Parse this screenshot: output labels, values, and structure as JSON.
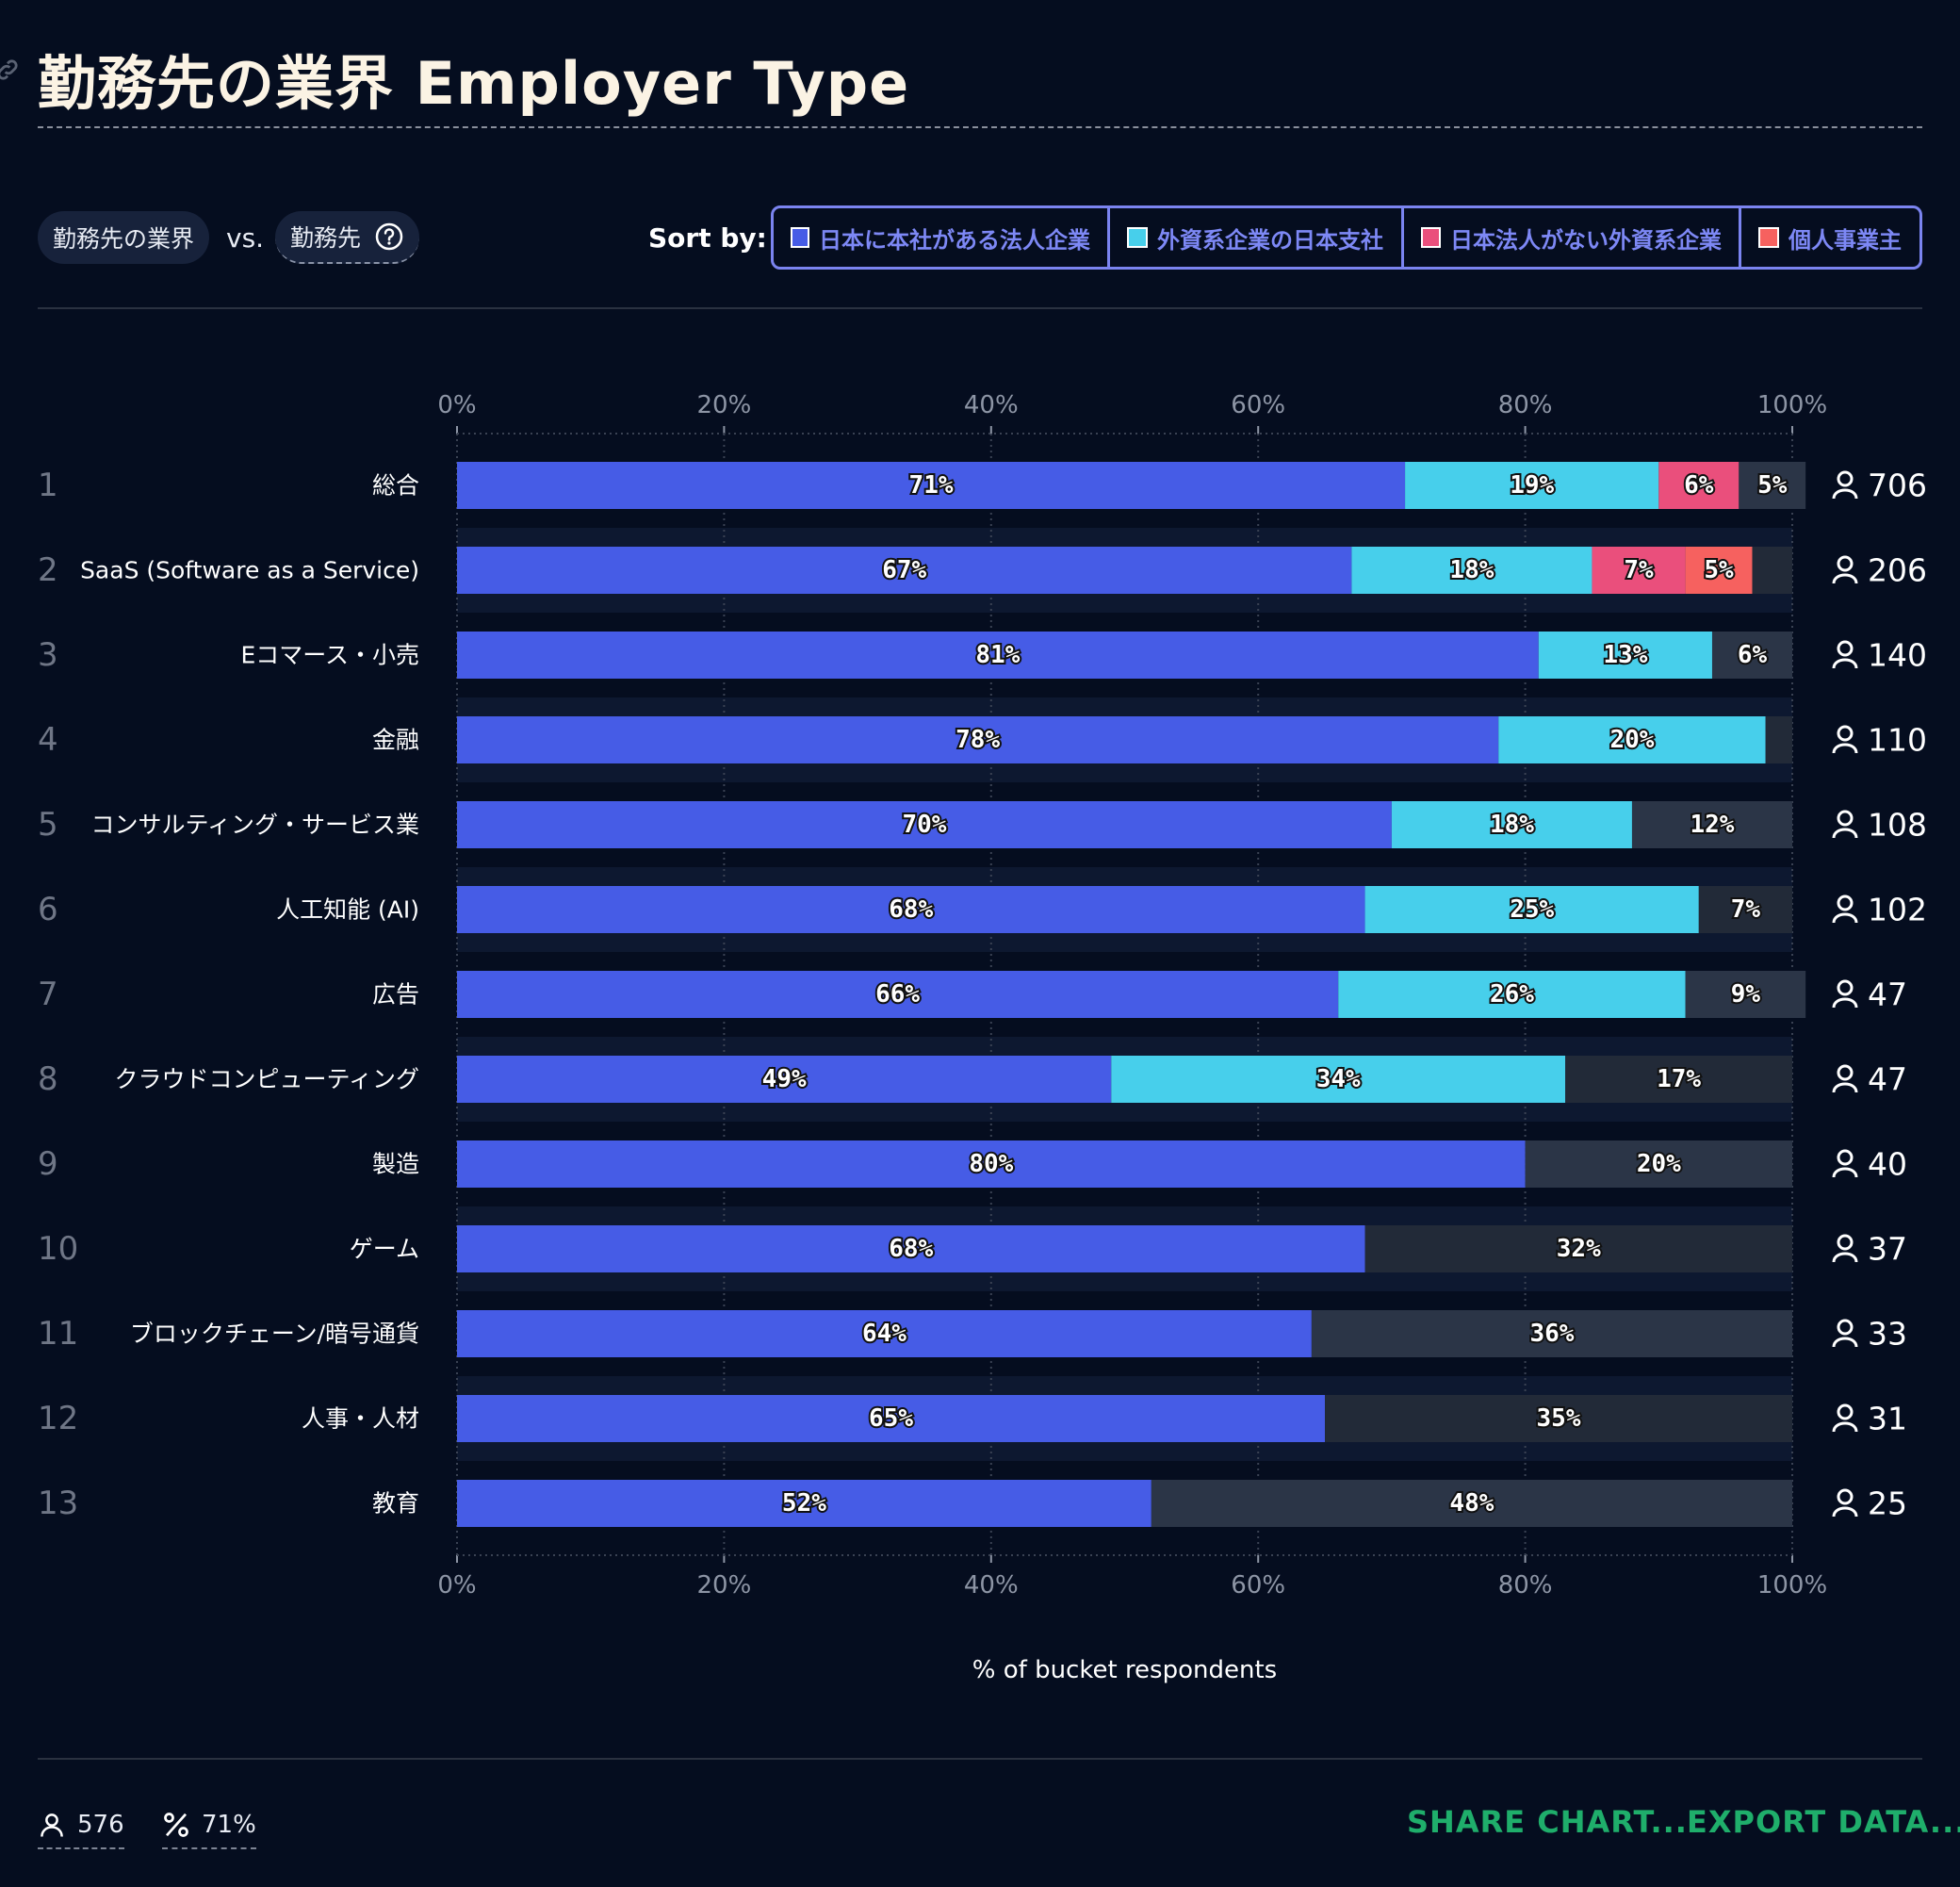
{
  "header": {
    "title": "勤務先の業界 Employer Type"
  },
  "controls": {
    "chip_primary": "勤務先の業界",
    "vs": "vs.",
    "chip_secondary": "勤務先",
    "sort_label": "Sort by:",
    "sort_options": [
      {
        "label": "日本に本社がある法人企業",
        "color": "#465ce6"
      },
      {
        "label": "外資系企業の日本支社",
        "color": "#47cfeb"
      },
      {
        "label": "日本法人がない外資系企業",
        "color": "#ea4f7c"
      },
      {
        "label": "個人事業主",
        "color": "#f6615f"
      }
    ]
  },
  "chart_data": {
    "type": "bar",
    "orientation": "horizontal",
    "stacked": true,
    "xlim": [
      0,
      100
    ],
    "x_ticks": [
      "0%",
      "20%",
      "40%",
      "60%",
      "80%",
      "100%"
    ],
    "xlabel": "% of bucket respondents",
    "series_colors": [
      "#465ce6",
      "#47cfeb",
      "#ea4f7c",
      "#f6615f"
    ],
    "series": [
      {
        "name": "日本に本社がある法人企業"
      },
      {
        "name": "外資系企業の日本支社"
      },
      {
        "name": "日本法人がない外資系企業"
      },
      {
        "name": "個人事業主"
      }
    ],
    "rows": [
      {
        "rank": "1",
        "category": "総合",
        "count": "706",
        "segments": [
          {
            "series": 0,
            "value": 71,
            "label": "71%"
          },
          {
            "series": 1,
            "value": 19,
            "label": "19%"
          },
          {
            "series": 2,
            "value": 6,
            "label": "6%"
          },
          {
            "series": "other",
            "value": 5,
            "label": "5%"
          }
        ]
      },
      {
        "rank": "2",
        "category": "SaaS (Software as a Service)",
        "count": "206",
        "segments": [
          {
            "series": 0,
            "value": 67,
            "label": "67%"
          },
          {
            "series": 1,
            "value": 18,
            "label": "18%"
          },
          {
            "series": 2,
            "value": 7,
            "label": "7%"
          },
          {
            "series": 3,
            "value": 5,
            "label": "5%"
          },
          {
            "series": "other",
            "value": 3,
            "label": ""
          }
        ]
      },
      {
        "rank": "3",
        "category": "Eコマース・小売",
        "count": "140",
        "segments": [
          {
            "series": 0,
            "value": 81,
            "label": "81%"
          },
          {
            "series": 1,
            "value": 13,
            "label": "13%"
          },
          {
            "series": "other",
            "value": 6,
            "label": "6%"
          }
        ]
      },
      {
        "rank": "4",
        "category": "金融",
        "count": "110",
        "segments": [
          {
            "series": 0,
            "value": 78,
            "label": "78%"
          },
          {
            "series": 1,
            "value": 20,
            "label": "20%"
          },
          {
            "series": "other",
            "value": 2,
            "label": ""
          }
        ]
      },
      {
        "rank": "5",
        "category": "コンサルティング・サービス業",
        "count": "108",
        "segments": [
          {
            "series": 0,
            "value": 70,
            "label": "70%"
          },
          {
            "series": 1,
            "value": 18,
            "label": "18%"
          },
          {
            "series": "other",
            "value": 12,
            "label": "12%"
          }
        ]
      },
      {
        "rank": "6",
        "category": "人工知能 (AI)",
        "count": "102",
        "segments": [
          {
            "series": 0,
            "value": 68,
            "label": "68%"
          },
          {
            "series": 1,
            "value": 25,
            "label": "25%"
          },
          {
            "series": "other",
            "value": 7,
            "label": "7%"
          }
        ]
      },
      {
        "rank": "7",
        "category": "広告",
        "count": "47",
        "segments": [
          {
            "series": 0,
            "value": 66,
            "label": "66%"
          },
          {
            "series": 1,
            "value": 26,
            "label": "26%"
          },
          {
            "series": "other",
            "value": 9,
            "label": "9%"
          }
        ]
      },
      {
        "rank": "8",
        "category": "クラウドコンピューティング",
        "count": "47",
        "segments": [
          {
            "series": 0,
            "value": 49,
            "label": "49%"
          },
          {
            "series": 1,
            "value": 34,
            "label": "34%"
          },
          {
            "series": "other",
            "value": 17,
            "label": "17%"
          }
        ]
      },
      {
        "rank": "9",
        "category": "製造",
        "count": "40",
        "segments": [
          {
            "series": 0,
            "value": 80,
            "label": "80%"
          },
          {
            "series": "other",
            "value": 20,
            "label": "20%"
          }
        ]
      },
      {
        "rank": "10",
        "category": "ゲーム",
        "count": "37",
        "segments": [
          {
            "series": 0,
            "value": 68,
            "label": "68%"
          },
          {
            "series": "other",
            "value": 32,
            "label": "32%"
          }
        ]
      },
      {
        "rank": "11",
        "category": "ブロックチェーン/暗号通貨",
        "count": "33",
        "segments": [
          {
            "series": 0,
            "value": 64,
            "label": "64%"
          },
          {
            "series": "other",
            "value": 36,
            "label": "36%"
          }
        ]
      },
      {
        "rank": "12",
        "category": "人事・人材",
        "count": "31",
        "segments": [
          {
            "series": 0,
            "value": 65,
            "label": "65%"
          },
          {
            "series": "other",
            "value": 35,
            "label": "35%"
          }
        ]
      },
      {
        "rank": "13",
        "category": "教育",
        "count": "25",
        "segments": [
          {
            "series": 0,
            "value": 52,
            "label": "52%"
          },
          {
            "series": "other",
            "value": 48,
            "label": "48%"
          }
        ]
      }
    ]
  },
  "footer": {
    "respondents": "576",
    "percent": "71%",
    "share_label": "SHARE CHART...",
    "export_label": "EXPORT DATA..."
  }
}
